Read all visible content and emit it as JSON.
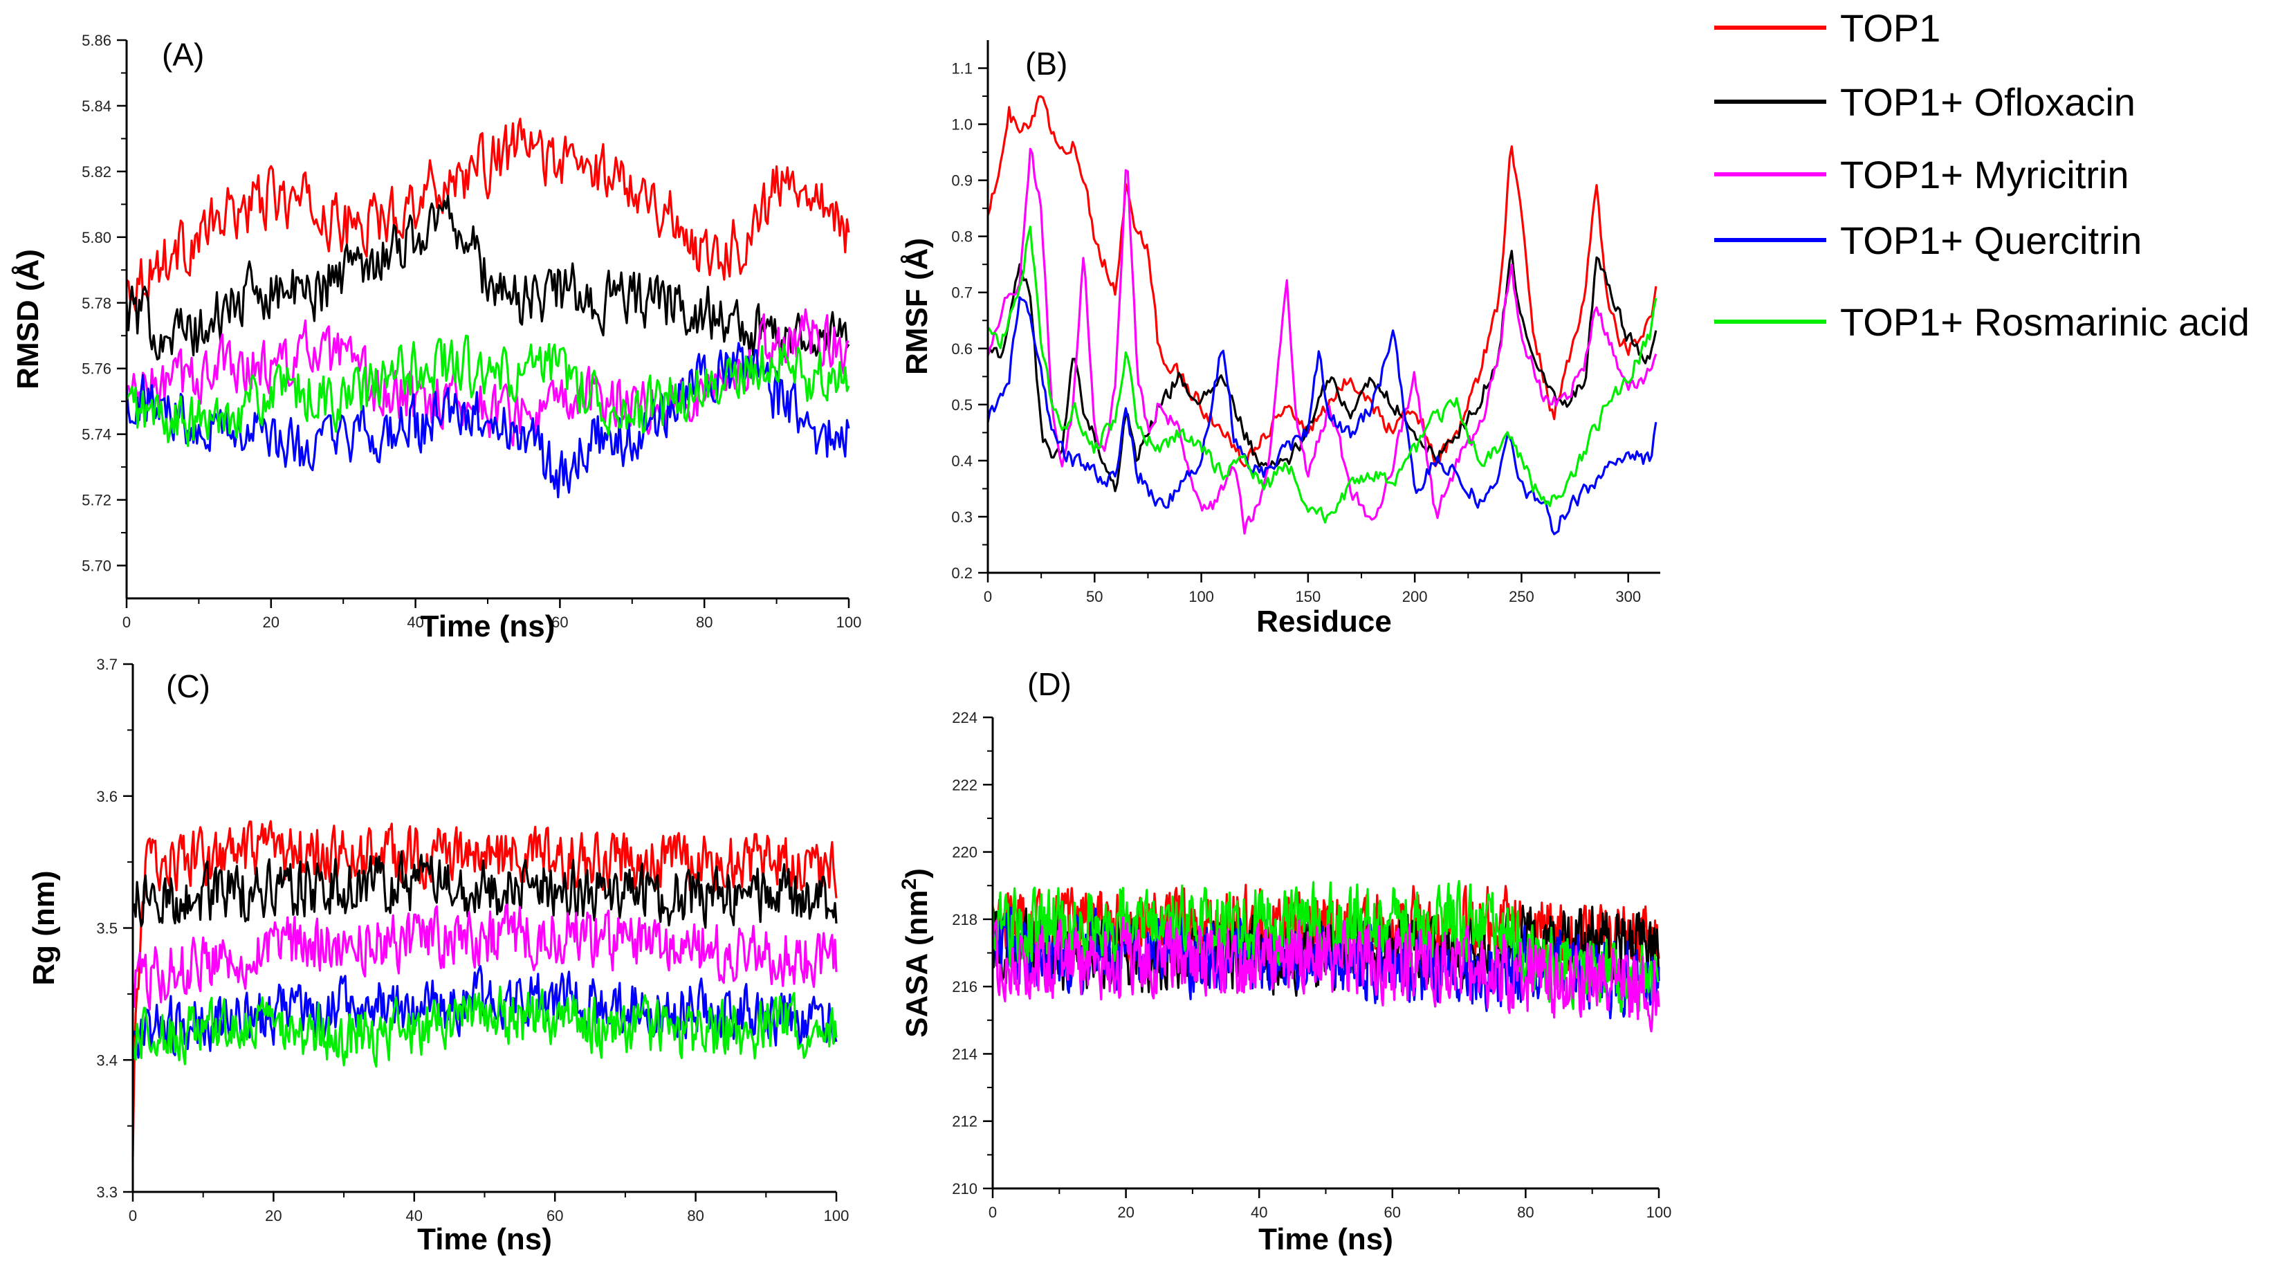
{
  "figure": {
    "legend": [
      {
        "label": "TOP1",
        "color": "#ff0000"
      },
      {
        "label": "TOP1+ Ofloxacin",
        "color": "#000000"
      },
      {
        "label": "TOP1+ Myricitrin",
        "color": "#ff00ff"
      },
      {
        "label": "TOP1+ Quercitrin",
        "color": "#0000ff"
      },
      {
        "label": "TOP1+ Rosmarinic acid",
        "color": "#00ee00"
      }
    ]
  },
  "chart_data": [
    {
      "panel": "(A)",
      "type": "line",
      "xlabel": "Time (ns)",
      "ylabel": "RMSD (Å)",
      "ylabel_sup": "",
      "xlim": [
        0,
        100
      ],
      "ylim": [
        5.69,
        5.86
      ],
      "xticks": [
        0,
        20,
        40,
        60,
        80,
        100
      ],
      "yticks": [
        5.7,
        5.72,
        5.74,
        5.76,
        5.78,
        5.8,
        5.82,
        5.84,
        5.86
      ],
      "ytick_decimals": 2,
      "noise": 0.012,
      "npts": 400,
      "series": [
        {
          "name": "TOP1",
          "color": "#ff0000",
          "x": [
            0,
            5,
            10,
            15,
            20,
            25,
            30,
            35,
            40,
            45,
            50,
            55,
            60,
            65,
            70,
            75,
            80,
            85,
            90,
            95,
            100
          ],
          "y": [
            5.785,
            5.793,
            5.8,
            5.808,
            5.812,
            5.81,
            5.803,
            5.805,
            5.812,
            5.818,
            5.822,
            5.828,
            5.823,
            5.82,
            5.818,
            5.807,
            5.795,
            5.798,
            5.815,
            5.818,
            5.8
          ]
        },
        {
          "name": "TOP1+ Ofloxacin",
          "color": "#000000",
          "x": [
            0,
            5,
            10,
            15,
            20,
            25,
            30,
            35,
            40,
            45,
            50,
            55,
            60,
            65,
            70,
            75,
            80,
            85,
            90,
            95,
            100
          ],
          "y": [
            5.778,
            5.772,
            5.77,
            5.78,
            5.785,
            5.782,
            5.79,
            5.795,
            5.8,
            5.808,
            5.787,
            5.78,
            5.785,
            5.78,
            5.782,
            5.78,
            5.778,
            5.772,
            5.77,
            5.772,
            5.768
          ]
        },
        {
          "name": "TOP1+ Myricitrin",
          "color": "#ff00ff",
          "x": [
            0,
            5,
            10,
            15,
            20,
            25,
            30,
            35,
            40,
            45,
            50,
            55,
            60,
            65,
            70,
            75,
            80,
            85,
            90,
            95,
            100
          ],
          "y": [
            5.752,
            5.755,
            5.758,
            5.762,
            5.76,
            5.765,
            5.762,
            5.752,
            5.75,
            5.752,
            5.748,
            5.745,
            5.748,
            5.752,
            5.75,
            5.748,
            5.755,
            5.762,
            5.768,
            5.772,
            5.768
          ]
        },
        {
          "name": "TOP1+ Quercitrin",
          "color": "#0000ff",
          "x": [
            0,
            5,
            10,
            15,
            20,
            25,
            30,
            35,
            40,
            45,
            50,
            55,
            60,
            65,
            70,
            75,
            80,
            85,
            90,
            95,
            100
          ],
          "y": [
            5.752,
            5.748,
            5.745,
            5.742,
            5.738,
            5.735,
            5.738,
            5.74,
            5.742,
            5.745,
            5.745,
            5.74,
            5.728,
            5.74,
            5.738,
            5.748,
            5.755,
            5.76,
            5.752,
            5.74,
            5.74
          ]
        },
        {
          "name": "TOP1+ Rosmarinic acid",
          "color": "#00ee00",
          "x": [
            0,
            5,
            10,
            15,
            20,
            25,
            30,
            35,
            40,
            45,
            50,
            55,
            60,
            65,
            70,
            75,
            80,
            85,
            90,
            95,
            100
          ],
          "y": [
            5.748,
            5.745,
            5.742,
            5.748,
            5.752,
            5.752,
            5.75,
            5.755,
            5.76,
            5.762,
            5.757,
            5.758,
            5.76,
            5.752,
            5.745,
            5.75,
            5.752,
            5.758,
            5.762,
            5.758,
            5.755
          ]
        }
      ]
    },
    {
      "panel": "(B)",
      "type": "line",
      "xlabel": "Residuce",
      "ylabel": "RMSF (Å)",
      "ylabel_sup": "",
      "xlim": [
        0,
        315
      ],
      "ylim": [
        0.2,
        1.15
      ],
      "xticks": [
        0,
        50,
        100,
        150,
        200,
        250,
        300
      ],
      "yticks": [
        0.2,
        0.3,
        0.4,
        0.5,
        0.6,
        0.7,
        0.8,
        0.9,
        1.0,
        1.1
      ],
      "ytick_decimals": 1,
      "noise": 0.02,
      "npts": 315,
      "series": [
        {
          "name": "TOP1",
          "color": "#ff0000",
          "x": [
            0,
            5,
            10,
            15,
            20,
            25,
            30,
            35,
            40,
            45,
            50,
            55,
            60,
            65,
            70,
            75,
            80,
            90,
            100,
            110,
            120,
            130,
            140,
            150,
            160,
            170,
            180,
            190,
            200,
            210,
            220,
            230,
            240,
            245,
            250,
            255,
            260,
            265,
            270,
            280,
            285,
            290,
            295,
            300,
            305,
            310,
            313
          ],
          "y": [
            0.85,
            0.9,
            1.02,
            0.98,
            1.0,
            1.05,
            0.98,
            0.95,
            0.97,
            0.9,
            0.8,
            0.75,
            0.7,
            0.9,
            0.8,
            0.78,
            0.6,
            0.55,
            0.5,
            0.45,
            0.4,
            0.45,
            0.5,
            0.45,
            0.5,
            0.55,
            0.5,
            0.45,
            0.5,
            0.4,
            0.45,
            0.55,
            0.7,
            0.97,
            0.85,
            0.65,
            0.55,
            0.48,
            0.55,
            0.7,
            0.9,
            0.7,
            0.62,
            0.6,
            0.62,
            0.65,
            0.7
          ]
        },
        {
          "name": "TOP1+ Ofloxacin",
          "color": "#000000",
          "x": [
            0,
            5,
            10,
            15,
            20,
            25,
            30,
            35,
            40,
            45,
            50,
            55,
            60,
            65,
            70,
            80,
            90,
            100,
            110,
            120,
            130,
            140,
            150,
            160,
            170,
            180,
            190,
            200,
            210,
            220,
            230,
            240,
            245,
            250,
            260,
            270,
            280,
            285,
            290,
            300,
            310,
            313
          ],
          "y": [
            0.6,
            0.58,
            0.65,
            0.75,
            0.7,
            0.45,
            0.4,
            0.42,
            0.6,
            0.48,
            0.45,
            0.38,
            0.35,
            0.5,
            0.4,
            0.5,
            0.55,
            0.5,
            0.55,
            0.45,
            0.38,
            0.4,
            0.45,
            0.55,
            0.48,
            0.55,
            0.5,
            0.45,
            0.4,
            0.45,
            0.5,
            0.6,
            0.78,
            0.65,
            0.55,
            0.5,
            0.55,
            0.75,
            0.72,
            0.62,
            0.58,
            0.62
          ]
        },
        {
          "name": "TOP1+ Myricitrin",
          "color": "#ff00ff",
          "x": [
            0,
            5,
            10,
            15,
            20,
            25,
            30,
            35,
            40,
            45,
            50,
            55,
            60,
            65,
            70,
            75,
            80,
            90,
            100,
            105,
            110,
            115,
            120,
            130,
            140,
            145,
            150,
            160,
            170,
            180,
            190,
            200,
            210,
            220,
            230,
            240,
            245,
            250,
            260,
            270,
            280,
            285,
            290,
            300,
            310,
            313
          ],
          "y": [
            0.6,
            0.65,
            0.7,
            0.72,
            0.95,
            0.85,
            0.5,
            0.4,
            0.5,
            0.78,
            0.45,
            0.4,
            0.55,
            0.96,
            0.55,
            0.45,
            0.5,
            0.45,
            0.3,
            0.32,
            0.35,
            0.4,
            0.28,
            0.35,
            0.72,
            0.45,
            0.38,
            0.5,
            0.35,
            0.28,
            0.4,
            0.55,
            0.3,
            0.4,
            0.45,
            0.6,
            0.75,
            0.62,
            0.52,
            0.5,
            0.58,
            0.68,
            0.62,
            0.52,
            0.56,
            0.58
          ]
        },
        {
          "name": "TOP1+ Quercitrin",
          "color": "#0000ff",
          "x": [
            0,
            5,
            10,
            15,
            20,
            25,
            30,
            35,
            40,
            45,
            50,
            55,
            60,
            65,
            70,
            75,
            80,
            90,
            100,
            105,
            110,
            115,
            120,
            130,
            140,
            150,
            155,
            160,
            170,
            180,
            190,
            200,
            210,
            220,
            230,
            240,
            245,
            250,
            260,
            265,
            270,
            280,
            290,
            300,
            310,
            313
          ],
          "y": [
            0.48,
            0.5,
            0.55,
            0.7,
            0.65,
            0.55,
            0.45,
            0.42,
            0.4,
            0.4,
            0.38,
            0.35,
            0.38,
            0.5,
            0.38,
            0.35,
            0.32,
            0.35,
            0.4,
            0.5,
            0.62,
            0.45,
            0.4,
            0.38,
            0.42,
            0.45,
            0.6,
            0.48,
            0.45,
            0.5,
            0.62,
            0.35,
            0.4,
            0.38,
            0.33,
            0.38,
            0.45,
            0.35,
            0.33,
            0.28,
            0.3,
            0.35,
            0.38,
            0.42,
            0.4,
            0.46
          ]
        },
        {
          "name": "TOP1+ Rosmarinic acid",
          "color": "#00ee00",
          "x": [
            0,
            5,
            10,
            15,
            20,
            25,
            30,
            35,
            40,
            45,
            50,
            55,
            60,
            65,
            70,
            80,
            90,
            100,
            110,
            120,
            130,
            140,
            150,
            160,
            170,
            180,
            190,
            200,
            210,
            220,
            230,
            240,
            245,
            250,
            260,
            270,
            280,
            290,
            300,
            310,
            313
          ],
          "y": [
            0.65,
            0.6,
            0.65,
            0.72,
            0.82,
            0.6,
            0.5,
            0.45,
            0.5,
            0.45,
            0.42,
            0.45,
            0.48,
            0.6,
            0.45,
            0.42,
            0.45,
            0.42,
            0.38,
            0.4,
            0.35,
            0.4,
            0.32,
            0.3,
            0.35,
            0.38,
            0.35,
            0.42,
            0.48,
            0.5,
            0.4,
            0.42,
            0.45,
            0.4,
            0.32,
            0.35,
            0.42,
            0.5,
            0.55,
            0.62,
            0.68
          ]
        }
      ]
    },
    {
      "panel": "(C)",
      "type": "line",
      "xlabel": "Time (ns)",
      "ylabel": "Rg (nm)",
      "ylabel_sup": "",
      "xlim": [
        0,
        100
      ],
      "ylim": [
        3.3,
        3.7
      ],
      "xticks": [
        0,
        20,
        40,
        60,
        80,
        100
      ],
      "yticks": [
        3.3,
        3.4,
        3.5,
        3.6,
        3.7
      ],
      "ytick_decimals": 1,
      "noise": 0.03,
      "npts": 500,
      "series": [
        {
          "name": "TOP1",
          "color": "#ff0000",
          "x": [
            0,
            0.5,
            2,
            10,
            20,
            30,
            40,
            50,
            60,
            70,
            80,
            90,
            100
          ],
          "y": [
            3.33,
            3.45,
            3.55,
            3.552,
            3.555,
            3.555,
            3.555,
            3.555,
            3.552,
            3.55,
            3.55,
            3.55,
            3.545
          ]
        },
        {
          "name": "TOP1+ Ofloxacin",
          "color": "#000000",
          "x": [
            0,
            10,
            20,
            30,
            40,
            50,
            60,
            70,
            80,
            90,
            100
          ],
          "y": [
            3.52,
            3.525,
            3.53,
            3.53,
            3.535,
            3.53,
            3.53,
            3.525,
            3.525,
            3.525,
            3.52
          ]
        },
        {
          "name": "TOP1+ Myricitrin",
          "color": "#ff00ff",
          "x": [
            0,
            10,
            20,
            30,
            40,
            50,
            60,
            70,
            80,
            90,
            100
          ],
          "y": [
            3.46,
            3.475,
            3.485,
            3.49,
            3.49,
            3.495,
            3.495,
            3.49,
            3.485,
            3.48,
            3.475
          ]
        },
        {
          "name": "TOP1+ Quercitrin",
          "color": "#0000ff",
          "x": [
            0,
            10,
            20,
            30,
            40,
            50,
            60,
            70,
            80,
            90,
            100
          ],
          "y": [
            3.42,
            3.43,
            3.435,
            3.44,
            3.44,
            3.445,
            3.445,
            3.44,
            3.44,
            3.435,
            3.43
          ]
        },
        {
          "name": "TOP1+ Rosmarinic acid",
          "color": "#00ee00",
          "x": [
            0,
            10,
            20,
            30,
            40,
            50,
            60,
            70,
            80,
            90,
            100
          ],
          "y": [
            3.42,
            3.42,
            3.425,
            3.42,
            3.425,
            3.435,
            3.43,
            3.425,
            3.42,
            3.425,
            3.425
          ]
        }
      ]
    },
    {
      "panel": "(D)",
      "type": "line",
      "xlabel": "Time (ns)",
      "ylabel": "SASA (nm",
      "ylabel_sup": "2",
      "ylabel_close": ")",
      "xlim": [
        0,
        100
      ],
      "ylim": [
        210,
        224
      ],
      "xticks": [
        0,
        20,
        40,
        60,
        80,
        100
      ],
      "yticks": [
        210,
        212,
        214,
        216,
        218,
        220,
        222,
        224
      ],
      "ytick_decimals": 0,
      "noise": 1.5,
      "npts": 700,
      "series": [
        {
          "name": "TOP1",
          "color": "#ff0000",
          "x": [
            0,
            20,
            40,
            60,
            78,
            80,
            100
          ],
          "y": [
            217.8,
            217.8,
            217.8,
            217.8,
            217.8,
            217.6,
            217.4
          ]
        },
        {
          "name": "TOP1+ Ofloxacin",
          "color": "#000000",
          "x": [
            0,
            20,
            40,
            60,
            78,
            80,
            100
          ],
          "y": [
            217.0,
            217.0,
            217.0,
            217.0,
            217.0,
            217.3,
            217.2
          ]
        },
        {
          "name": "TOP1+ Quercitrin",
          "color": "#0000ff",
          "x": [
            0,
            20,
            40,
            60,
            80,
            100
          ],
          "y": [
            217.0,
            217.0,
            216.8,
            216.6,
            216.5,
            216.2
          ]
        },
        {
          "name": "TOP1+ Rosmarinic acid",
          "color": "#00ee00",
          "x": [
            0,
            20,
            40,
            60,
            78,
            80,
            100
          ],
          "y": [
            217.8,
            217.9,
            217.9,
            217.9,
            217.8,
            216.8,
            216.2
          ]
        },
        {
          "name": "TOP1+ Myricitrin",
          "color": "#ff00ff",
          "x": [
            0,
            20,
            40,
            60,
            80,
            100
          ],
          "y": [
            216.8,
            216.8,
            216.8,
            216.8,
            216.3,
            216.0
          ]
        }
      ]
    }
  ]
}
